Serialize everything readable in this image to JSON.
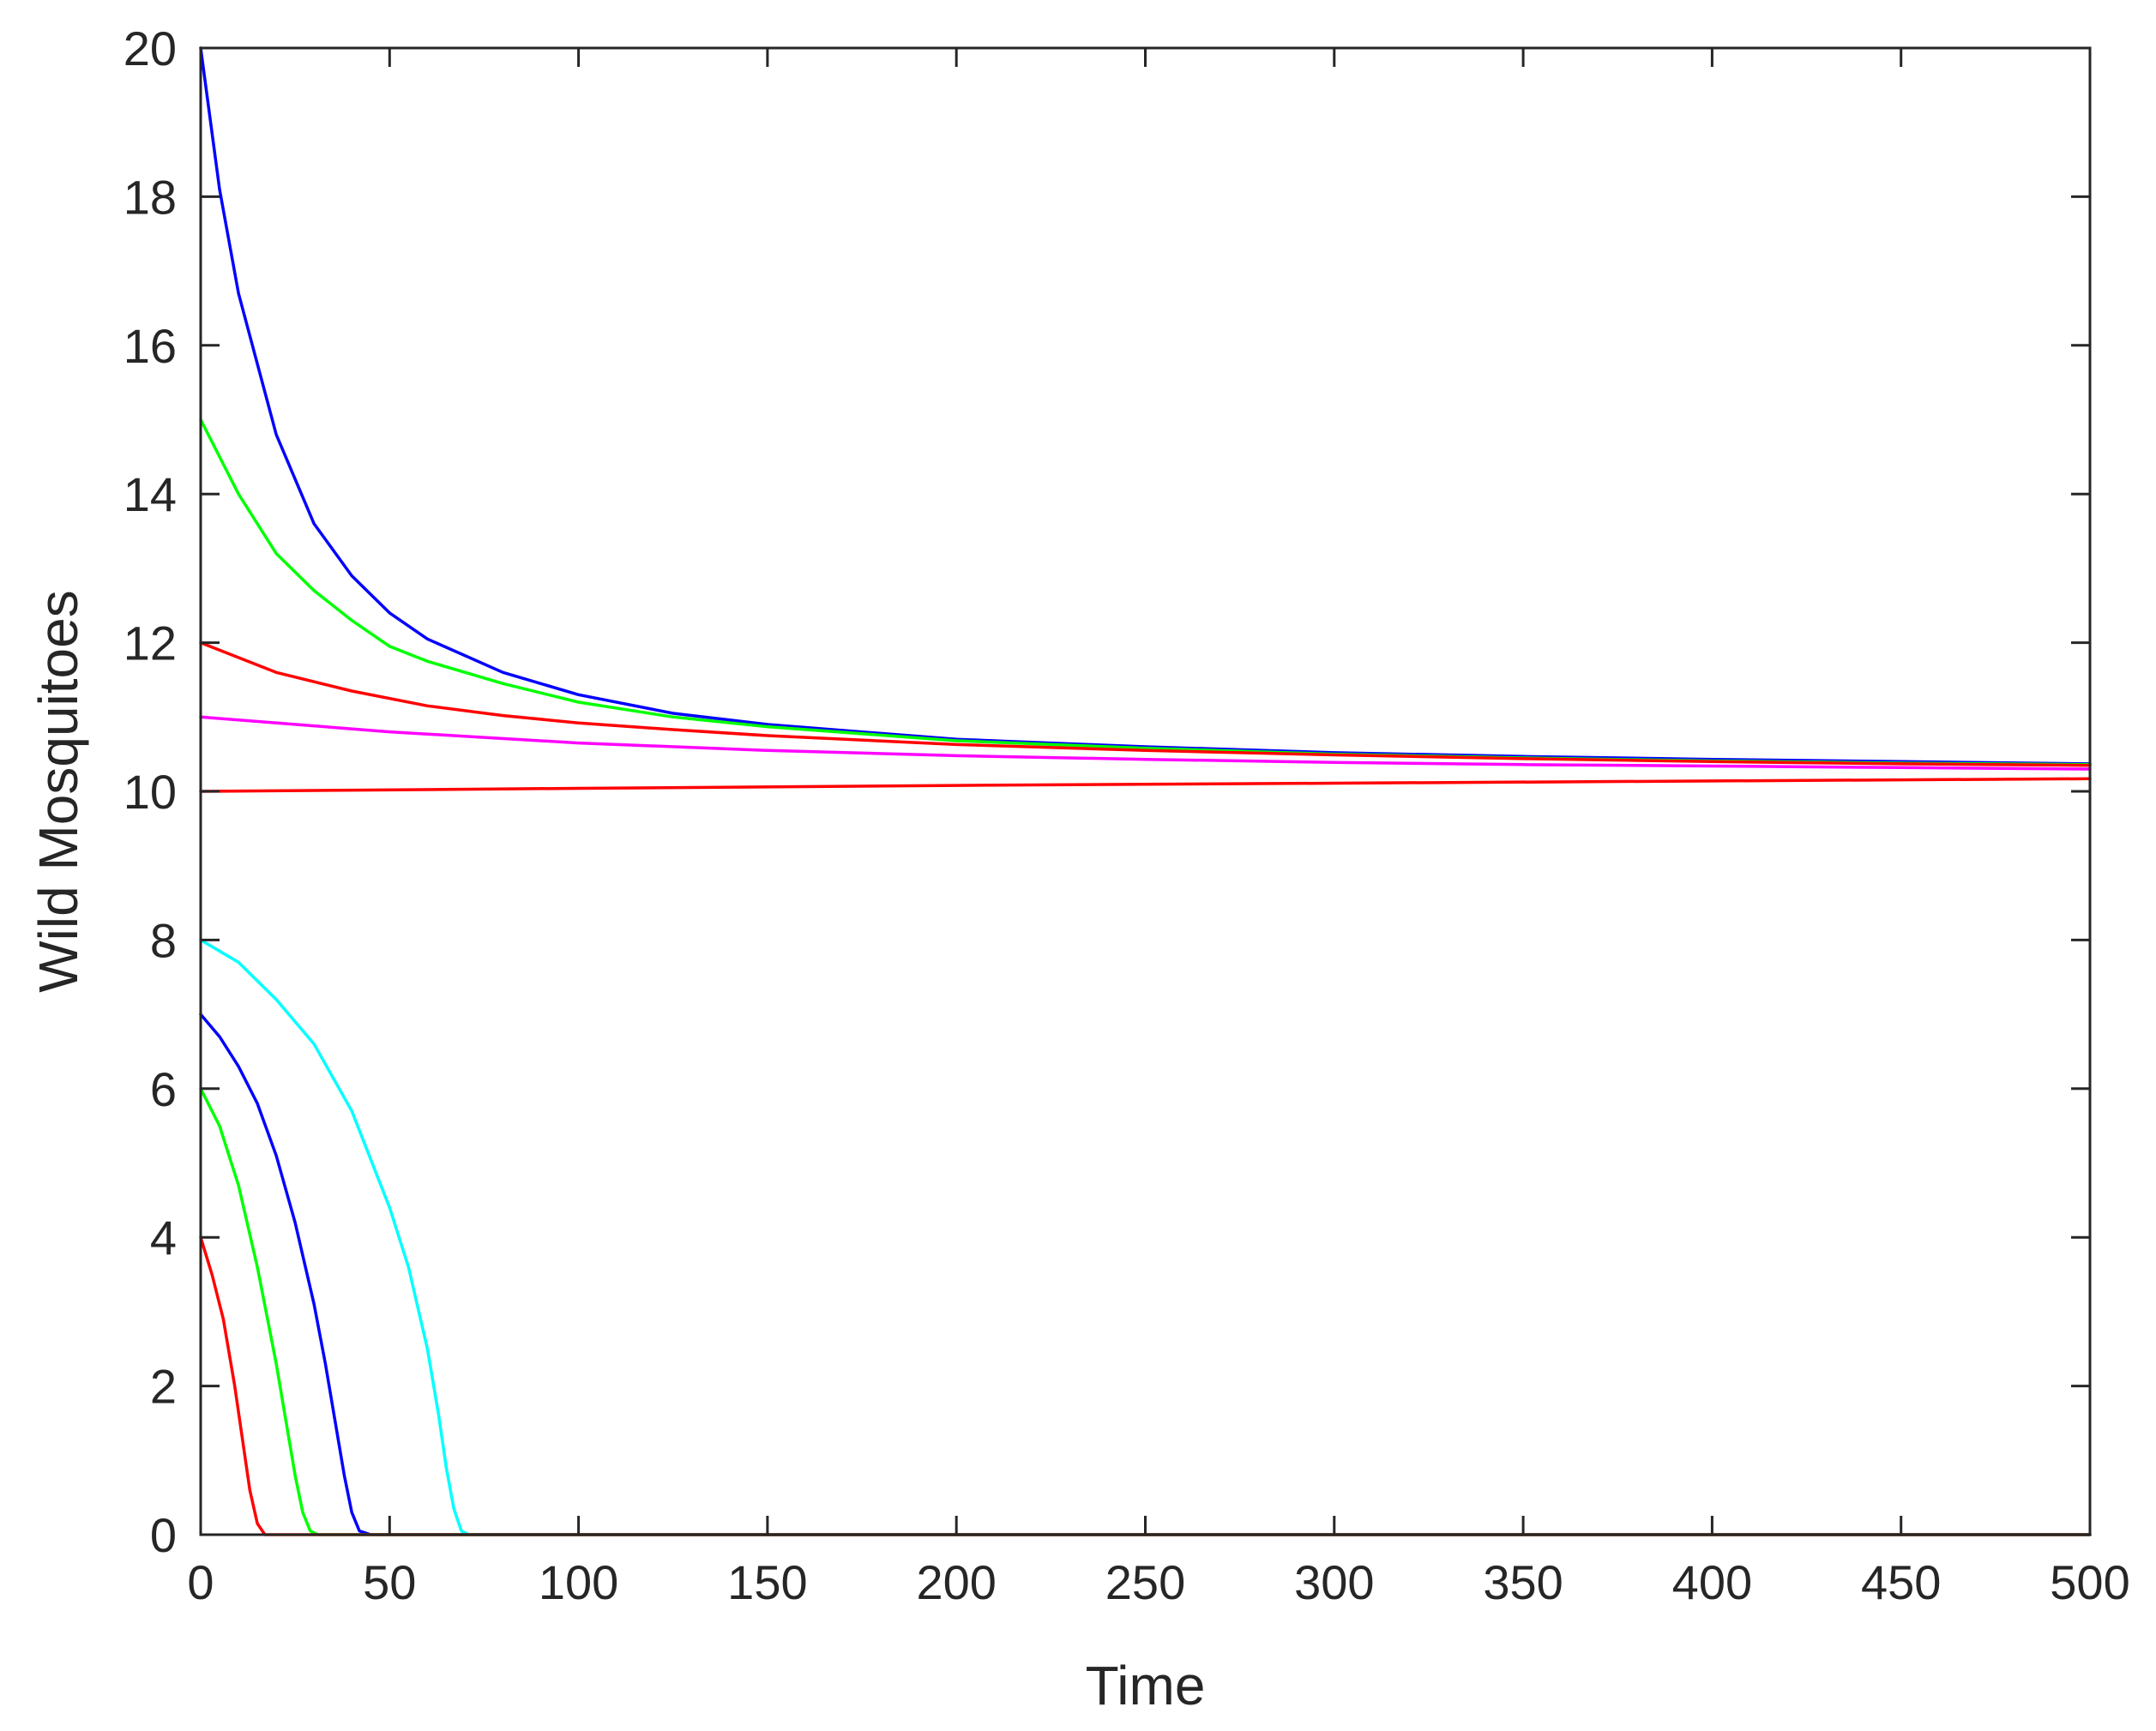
{
  "chart_data": {
    "type": "line",
    "title": "",
    "xlabel": "Time",
    "ylabel": "Wild Mosquitoes",
    "xlim": [
      0,
      500
    ],
    "ylim": [
      0,
      20
    ],
    "xticks": [
      0,
      50,
      100,
      150,
      200,
      250,
      300,
      350,
      400,
      450,
      500
    ],
    "yticks": [
      0,
      2,
      4,
      6,
      8,
      10,
      12,
      14,
      16,
      18,
      20
    ],
    "grid": false,
    "legend": "none",
    "series": [
      {
        "color": "#0000ff",
        "x": [
          0,
          5,
          10,
          20,
          30,
          40,
          50,
          60,
          80,
          100,
          125,
          150,
          200,
          250,
          300,
          350,
          400,
          450,
          500
        ],
        "y": [
          20,
          18.1,
          16.7,
          14.8,
          13.6,
          12.9,
          12.4,
          12.05,
          11.6,
          11.3,
          11.05,
          10.9,
          10.7,
          10.6,
          10.52,
          10.47,
          10.43,
          10.4,
          10.37
        ]
      },
      {
        "color": "#00ff00",
        "x": [
          0,
          10,
          20,
          30,
          40,
          50,
          60,
          80,
          100,
          125,
          150,
          200,
          250,
          300,
          350,
          400,
          450,
          500
        ],
        "y": [
          15,
          14.0,
          13.2,
          12.7,
          12.3,
          11.95,
          11.75,
          11.45,
          11.2,
          11.0,
          10.87,
          10.68,
          10.58,
          10.5,
          10.45,
          10.41,
          10.38,
          10.36
        ]
      },
      {
        "color": "#ff0000",
        "x": [
          0,
          20,
          40,
          60,
          80,
          100,
          125,
          150,
          200,
          250,
          300,
          350,
          400,
          450,
          500
        ],
        "y": [
          12,
          11.6,
          11.35,
          11.15,
          11.02,
          10.92,
          10.83,
          10.75,
          10.63,
          10.55,
          10.49,
          10.44,
          10.4,
          10.37,
          10.35
        ]
      },
      {
        "color": "#ff00ff",
        "x": [
          0,
          50,
          100,
          150,
          200,
          250,
          300,
          350,
          400,
          450,
          500
        ],
        "y": [
          11,
          10.8,
          10.65,
          10.55,
          10.48,
          10.43,
          10.39,
          10.36,
          10.34,
          10.32,
          10.3
        ]
      },
      {
        "color": "#ff0000",
        "x": [
          0,
          100,
          200,
          300,
          400,
          500
        ],
        "y": [
          10,
          10.04,
          10.08,
          10.11,
          10.14,
          10.17
        ]
      },
      {
        "color": "#00ffff",
        "x": [
          0,
          10,
          20,
          30,
          40,
          50,
          55,
          60,
          63,
          65,
          67,
          69,
          71,
          500
        ],
        "y": [
          8,
          7.7,
          7.2,
          6.6,
          5.7,
          4.4,
          3.6,
          2.5,
          1.6,
          0.9,
          0.35,
          0.05,
          0,
          0
        ]
      },
      {
        "color": "#0000ff",
        "x": [
          0,
          5,
          10,
          15,
          20,
          25,
          30,
          33,
          36,
          38,
          40,
          42,
          45,
          500
        ],
        "y": [
          7,
          6.7,
          6.3,
          5.8,
          5.1,
          4.2,
          3.1,
          2.3,
          1.4,
          0.8,
          0.3,
          0.05,
          0,
          0
        ]
      },
      {
        "color": "#00ff00",
        "x": [
          0,
          5,
          10,
          15,
          20,
          23,
          25,
          27,
          29,
          31,
          500
        ],
        "y": [
          6,
          5.5,
          4.7,
          3.6,
          2.3,
          1.4,
          0.8,
          0.3,
          0.05,
          0,
          0
        ]
      },
      {
        "color": "#ff0000",
        "x": [
          0,
          3,
          6,
          9,
          11,
          13,
          15,
          17,
          18,
          500
        ],
        "y": [
          4,
          3.5,
          2.9,
          2.0,
          1.3,
          0.6,
          0.15,
          0,
          0,
          0
        ]
      }
    ]
  }
}
